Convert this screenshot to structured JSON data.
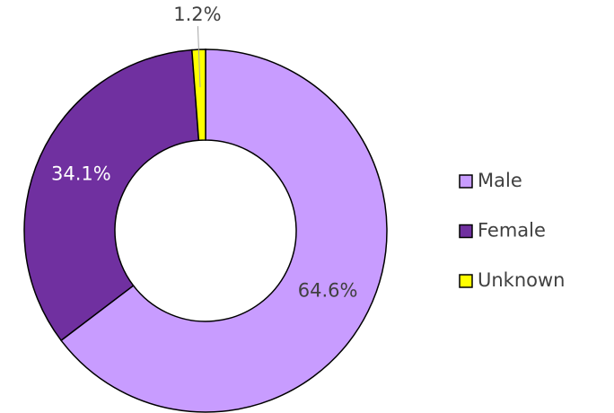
{
  "chart_data": {
    "type": "donut",
    "categories": [
      "Male",
      "Female",
      "Unknown"
    ],
    "values": [
      64.6,
      34.1,
      1.2
    ],
    "value_labels": [
      "64.6%",
      "34.1%",
      "1.2%"
    ],
    "colors": [
      "#c89cff",
      "#7030a0",
      "#ffff00"
    ],
    "label_colors": [
      "#404040",
      "#ffffff",
      "#404040"
    ],
    "legend": "right"
  }
}
